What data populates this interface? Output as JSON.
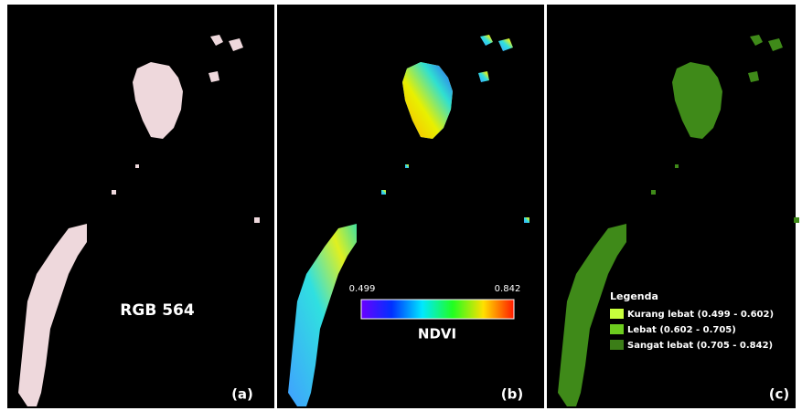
{
  "panels": [
    {
      "label": "(a)",
      "caption": "RGB 564"
    },
    {
      "label": "(b)"
    },
    {
      "label": "(c)"
    }
  ],
  "colorbar": {
    "title": "NDVI",
    "min_label": "0.499",
    "max_label": "0.842"
  },
  "legend": {
    "title": "Legenda",
    "items": [
      {
        "label": "Kurang lebat (0.499 - 0.602)",
        "color": "#c8ff3c"
      },
      {
        "label": "Lebat (0.602 - 0.705)",
        "color": "#6ccc1e"
      },
      {
        "label": "Sangat lebat (0.705 - 0.842)",
        "color": "#3b7d17"
      }
    ]
  }
}
